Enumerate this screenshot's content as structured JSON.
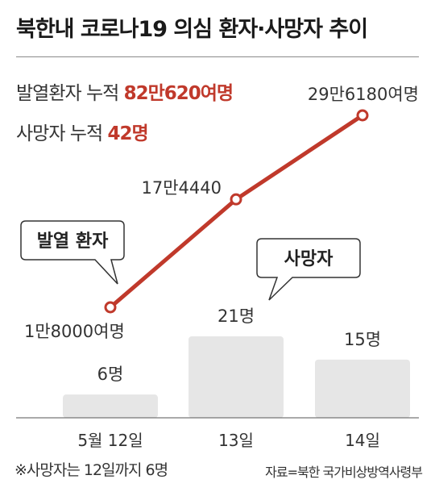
{
  "header": {
    "title": "북한내 코로나19 의심 환자·사망자 추이"
  },
  "summary": {
    "cases_label": "발열환자 누적",
    "cases_value": "82만620여명",
    "deaths_label": "사망자 누적",
    "deaths_value": "42명"
  },
  "chart_data": {
    "type": "bar+line",
    "categories": [
      "5월 12일",
      "13일",
      "14일"
    ],
    "series": [
      {
        "name": "발열 환자",
        "type": "line",
        "values": [
          18000,
          174440,
          296180
        ],
        "labels": [
          "1만8000여명",
          "17만4440",
          "29만6180여명"
        ],
        "color": "#c0392b"
      },
      {
        "name": "사망자",
        "type": "bar",
        "values": [
          6,
          21,
          15
        ],
        "labels": [
          "6명",
          "21명",
          "15명"
        ],
        "color": "#e6e6e6"
      }
    ],
    "callouts": [
      "발열 환자",
      "사망자"
    ]
  },
  "footer": {
    "note": "※사망자는 12일까지 6명",
    "source": "자료=북한 국가비상방역사령부"
  }
}
